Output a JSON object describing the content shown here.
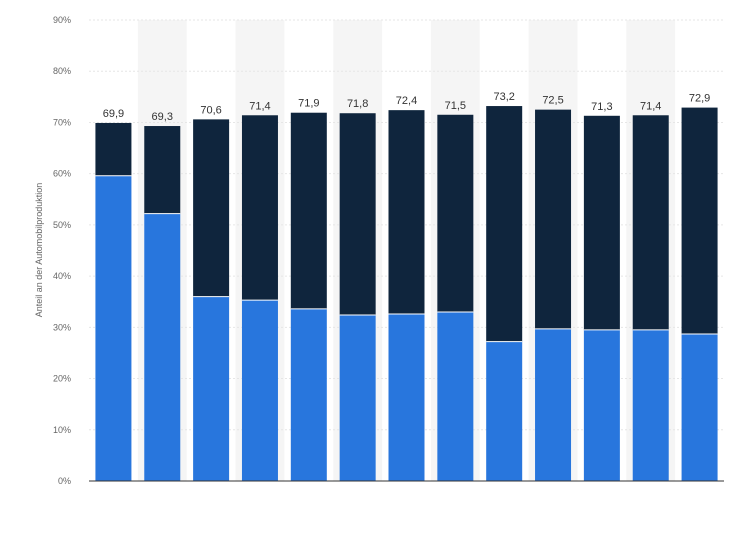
{
  "chart_data": {
    "type": "bar",
    "stacked": true,
    "ylabel": "Anteil an der Automobilproduktion",
    "ylim": [
      0,
      90
    ],
    "yticks": [
      "0%",
      "10%",
      "20%",
      "30%",
      "40%",
      "50%",
      "60%",
      "70%",
      "80%",
      "90%"
    ],
    "series": [
      {
        "values": [
          59.6,
          52.2,
          36.0,
          35.3,
          33.6,
          32.4,
          32.6,
          33.0,
          27.2,
          29.7,
          29.5,
          29.5,
          28.7
        ]
      },
      {
        "values": [
          10.3,
          17.1,
          34.6,
          36.1,
          38.3,
          39.4,
          39.8,
          38.5,
          46.0,
          42.8,
          41.8,
          41.9,
          44.2
        ]
      }
    ],
    "total_labels": [
      "69,9",
      "69,3",
      "70,6",
      "71,4",
      "71,9",
      "71,8",
      "72,4",
      "71,5",
      "73,2",
      "72,5",
      "71,3",
      "71,4",
      "72,9"
    ],
    "colors": {
      "series_bottom": "#2876dd",
      "series_top": "#0f253d",
      "gridline": "#e6e6e6",
      "band": "#f5f5f5",
      "axis": "#333333"
    }
  }
}
